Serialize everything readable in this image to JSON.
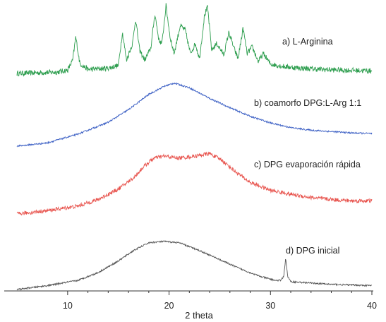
{
  "chart_data": {
    "type": "line",
    "xlabel": "2 theta",
    "ylabel": "",
    "xlim": [
      5,
      40
    ],
    "x_ticks": [
      10,
      20,
      30,
      40
    ],
    "grid": false,
    "legend": "none",
    "series": [
      {
        "name": "a) L-Arginina",
        "color": "#2e9e4f",
        "baseline": 0.04,
        "points": [
          [
            5,
            0
          ],
          [
            9,
            0.02
          ],
          [
            10,
            0.05
          ],
          [
            10.5,
            0.2
          ],
          [
            10.8,
            0.55
          ],
          [
            11.2,
            0.15
          ],
          [
            12,
            0.06
          ],
          [
            14,
            0.08
          ],
          [
            15,
            0.12
          ],
          [
            15.4,
            0.62
          ],
          [
            15.8,
            0.2
          ],
          [
            16.4,
            0.45
          ],
          [
            16.7,
            0.82
          ],
          [
            17.1,
            0.35
          ],
          [
            17.6,
            0.2
          ],
          [
            18.2,
            0.38
          ],
          [
            18.6,
            0.9
          ],
          [
            19,
            0.5
          ],
          [
            19.3,
            0.45
          ],
          [
            19.7,
            1.02
          ],
          [
            20.1,
            0.55
          ],
          [
            20.5,
            0.3
          ],
          [
            21.1,
            0.72
          ],
          [
            21.6,
            0.65
          ],
          [
            22.1,
            0.3
          ],
          [
            22.6,
            0.45
          ],
          [
            23,
            0.22
          ],
          [
            23.5,
            0.88
          ],
          [
            23.8,
            1.0
          ],
          [
            24.2,
            0.35
          ],
          [
            24.7,
            0.45
          ],
          [
            25.4,
            0.28
          ],
          [
            25.9,
            0.62
          ],
          [
            26.4,
            0.38
          ],
          [
            26.8,
            0.22
          ],
          [
            27.3,
            0.68
          ],
          [
            27.7,
            0.3
          ],
          [
            28.2,
            0.4
          ],
          [
            28.8,
            0.18
          ],
          [
            29.3,
            0.3
          ],
          [
            30,
            0.14
          ],
          [
            31.5,
            0.1
          ],
          [
            33,
            0.08
          ],
          [
            35,
            0.06
          ],
          [
            37,
            0.05
          ],
          [
            40,
            0.04
          ]
        ]
      },
      {
        "name": "b) coamorfo DPG:L-Arg 1:1",
        "color": "#3b5fc4",
        "baseline": 0.012,
        "points": [
          [
            5,
            0
          ],
          [
            8,
            0.05
          ],
          [
            11,
            0.18
          ],
          [
            14,
            0.36
          ],
          [
            16,
            0.55
          ],
          [
            18,
            0.78
          ],
          [
            19.5,
            0.9
          ],
          [
            20.5,
            0.95
          ],
          [
            22,
            0.88
          ],
          [
            24,
            0.72
          ],
          [
            26,
            0.58
          ],
          [
            28,
            0.45
          ],
          [
            30,
            0.35
          ],
          [
            32,
            0.28
          ],
          [
            34,
            0.24
          ],
          [
            36,
            0.22
          ],
          [
            38,
            0.2
          ],
          [
            40,
            0.19
          ]
        ]
      },
      {
        "name": "c) DPG evaporación rápida",
        "color": "#e8554f",
        "baseline": 0.03,
        "points": [
          [
            5,
            0
          ],
          [
            8,
            0.05
          ],
          [
            11,
            0.12
          ],
          [
            13,
            0.22
          ],
          [
            15,
            0.38
          ],
          [
            16.5,
            0.55
          ],
          [
            17.5,
            0.72
          ],
          [
            18.5,
            0.85
          ],
          [
            19.5,
            0.88
          ],
          [
            21,
            0.85
          ],
          [
            22.5,
            0.88
          ],
          [
            24,
            0.92
          ],
          [
            25.2,
            0.82
          ],
          [
            26.5,
            0.65
          ],
          [
            28,
            0.48
          ],
          [
            30,
            0.36
          ],
          [
            32,
            0.3
          ],
          [
            34,
            0.25
          ],
          [
            36,
            0.22
          ],
          [
            38,
            0.2
          ],
          [
            40,
            0.2
          ]
        ]
      },
      {
        "name": "d) DPG inicial",
        "color": "#555555",
        "baseline": 0.012,
        "points": [
          [
            5,
            0
          ],
          [
            8,
            0.06
          ],
          [
            11,
            0.14
          ],
          [
            13,
            0.26
          ],
          [
            15,
            0.44
          ],
          [
            16.5,
            0.6
          ],
          [
            18,
            0.72
          ],
          [
            19.5,
            0.74
          ],
          [
            21,
            0.72
          ],
          [
            23,
            0.6
          ],
          [
            25,
            0.46
          ],
          [
            27,
            0.32
          ],
          [
            29,
            0.2
          ],
          [
            30.5,
            0.14
          ],
          [
            31,
            0.14
          ],
          [
            31.3,
            0.2
          ],
          [
            31.5,
            0.48
          ],
          [
            31.7,
            0.2
          ],
          [
            32,
            0.12
          ],
          [
            34,
            0.1
          ],
          [
            36,
            0.08
          ],
          [
            38,
            0.07
          ],
          [
            40,
            0.06
          ]
        ]
      }
    ]
  }
}
